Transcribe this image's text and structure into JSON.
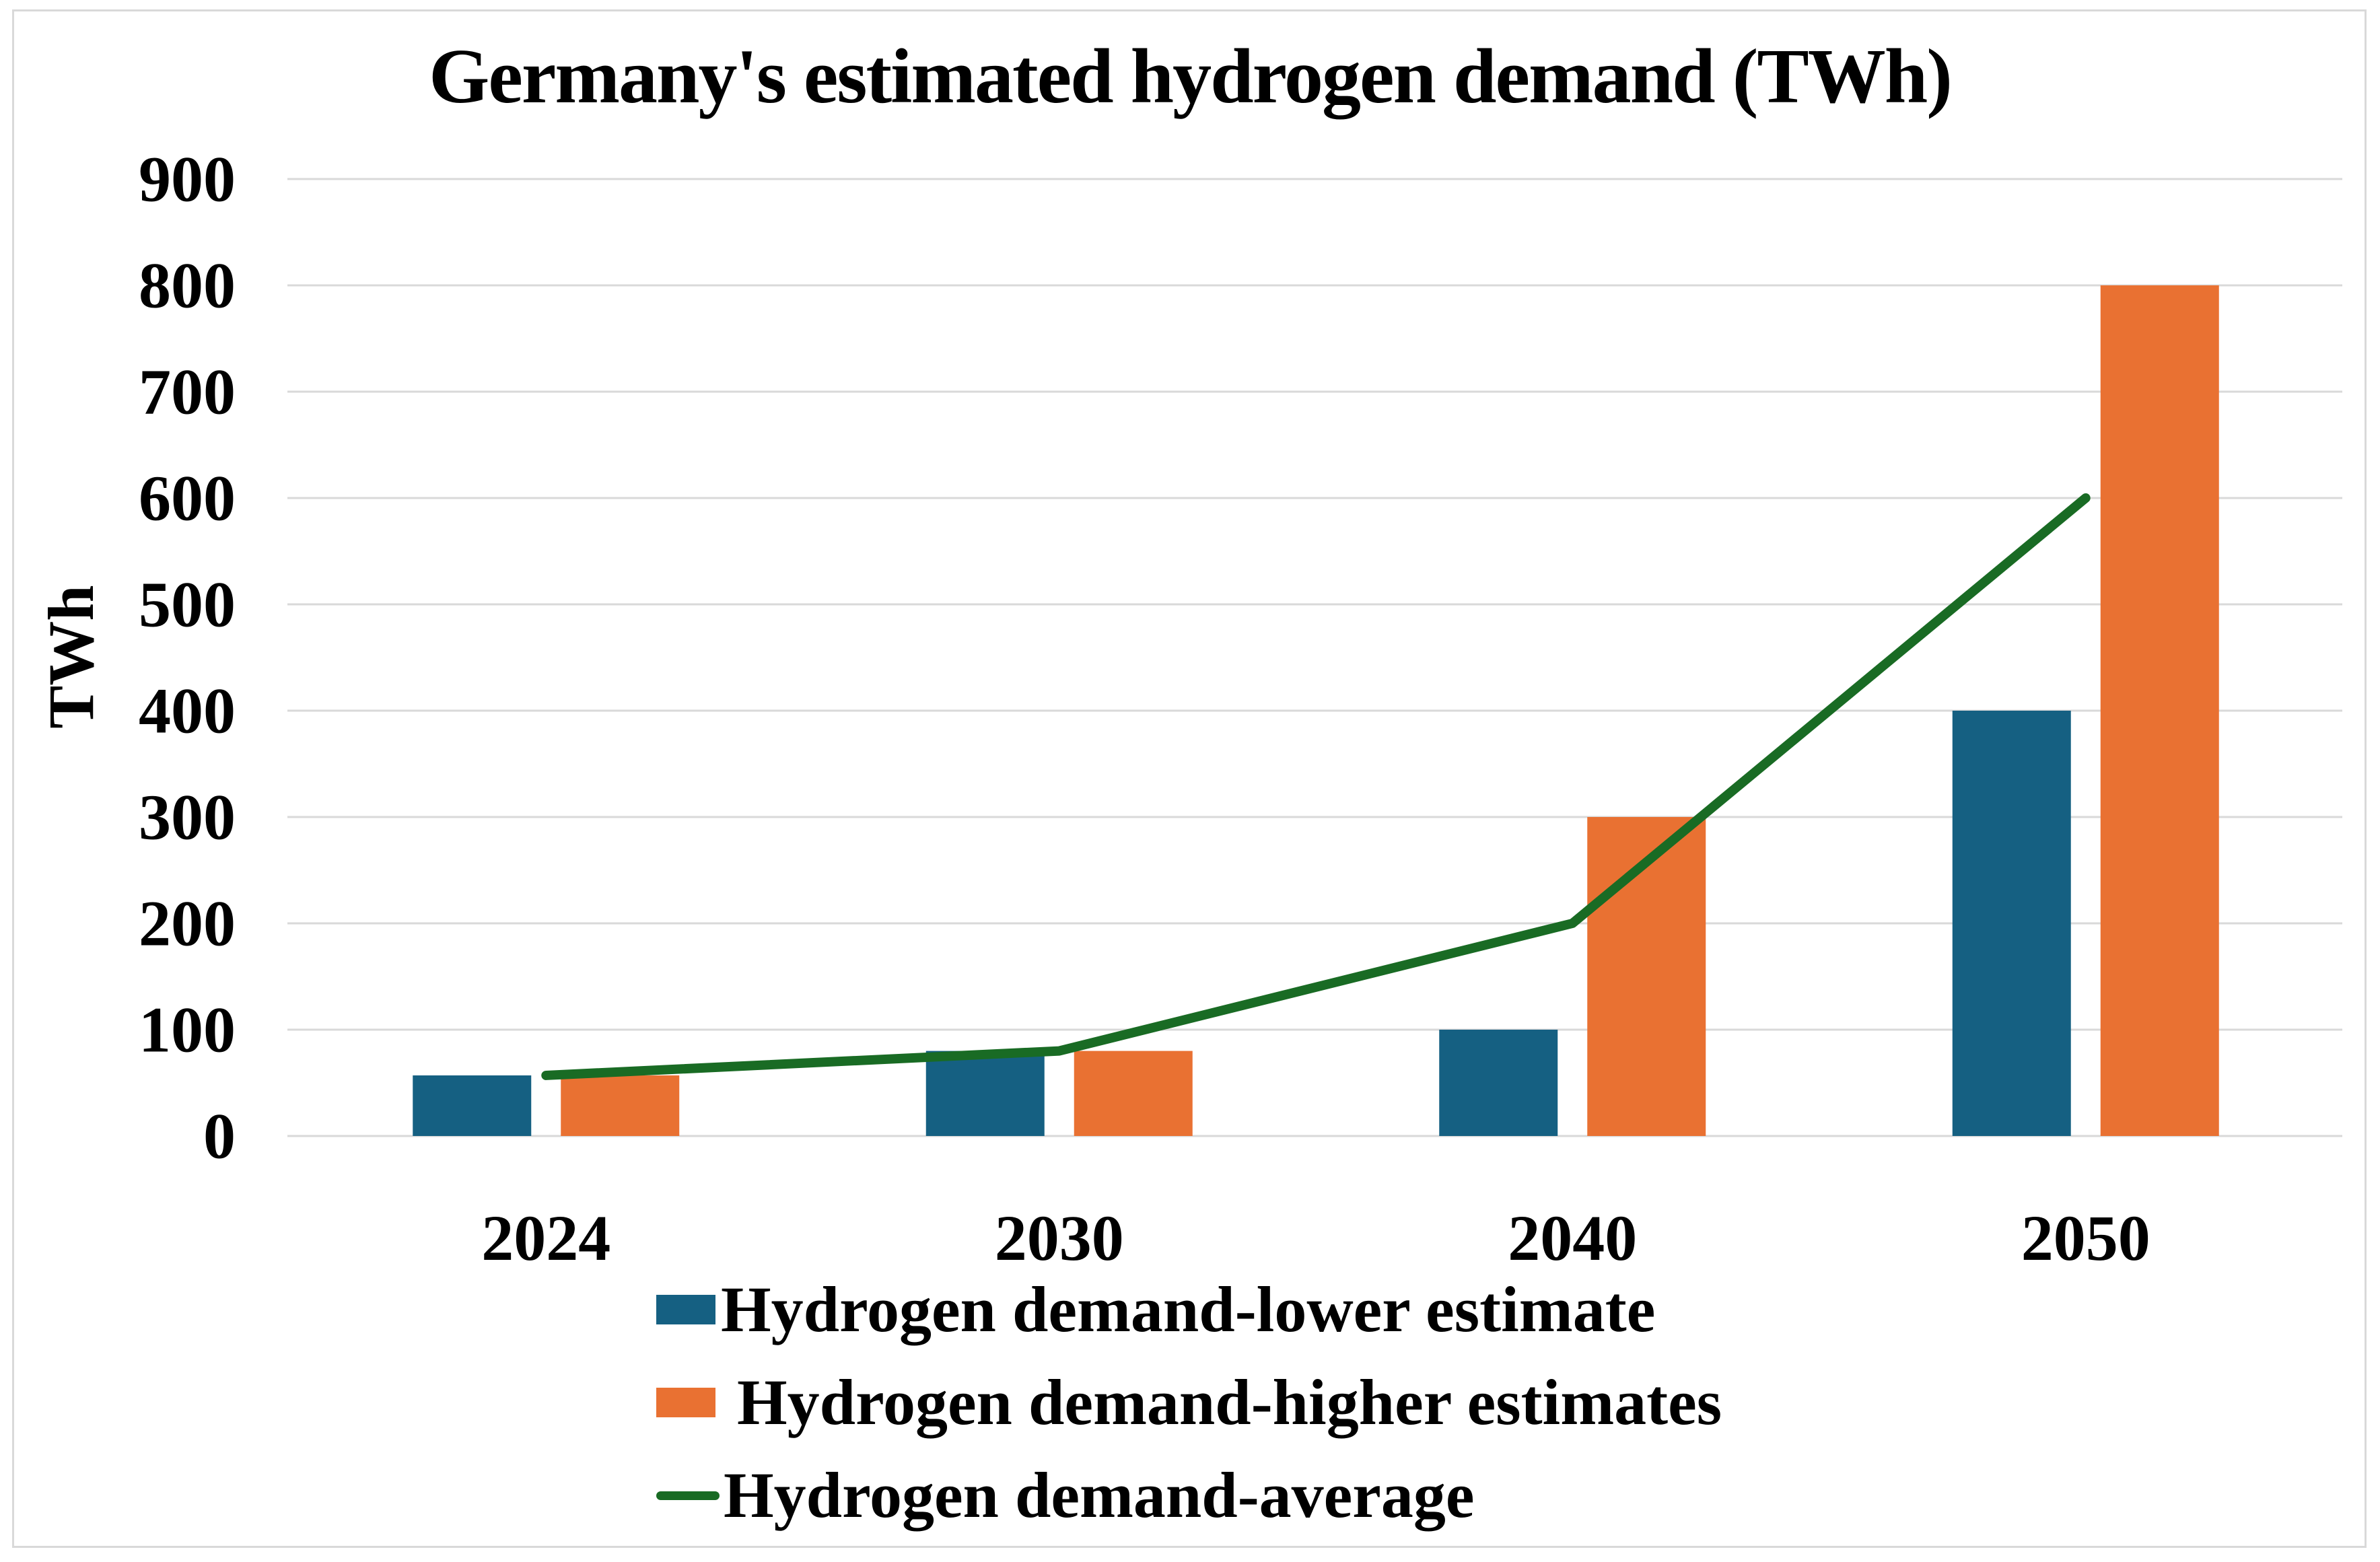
{
  "title": "Germany's estimated hydrogen demand (TWh)",
  "y_axis": {
    "label": "TWh",
    "ticks": [
      "0",
      "100",
      "200",
      "300",
      "400",
      "500",
      "600",
      "700",
      "800",
      "900"
    ]
  },
  "x_axis": {
    "ticks": [
      "2024",
      "2030",
      "2040",
      "2050"
    ]
  },
  "colors": {
    "lower_bar": "#156082",
    "higher_bar": "#E97132",
    "average_line": "#196B24",
    "gridline": "#D9D9D9",
    "frame_border": "#D9D9D9",
    "text": "#000000",
    "background": "#FFFFFF"
  },
  "legend": {
    "items": [
      {
        "label": "Hydrogen demand-lower estimate",
        "marker": "bar",
        "color": "#156082"
      },
      {
        "label": " Hydrogen demand-higher estimates",
        "marker": "bar",
        "color": "#E97132"
      },
      {
        "label": "Hydrogen demand-average",
        "marker": "line",
        "color": "#196B24"
      }
    ]
  },
  "chart_data": {
    "type": "bar",
    "title": "Germany's estimated hydrogen demand (TWh)",
    "categories": [
      "2024",
      "2030",
      "2040",
      "2050"
    ],
    "series": [
      {
        "name": "Hydrogen demand-lower estimate",
        "type": "bar",
        "color": "#156082",
        "values": [
          57,
          80,
          100,
          400
        ]
      },
      {
        "name": "Hydrogen demand-higher estimates",
        "type": "bar",
        "color": "#E97132",
        "values": [
          57,
          80,
          300,
          800
        ]
      },
      {
        "name": "Hydrogen demand-average",
        "type": "line",
        "color": "#196B24",
        "values": [
          57,
          80,
          200,
          600
        ]
      }
    ],
    "xlabel": "",
    "ylabel": "TWh",
    "ylim": [
      0,
      900
    ],
    "ytick_step": 100,
    "grid": true,
    "legend_position": "bottom-left"
  }
}
